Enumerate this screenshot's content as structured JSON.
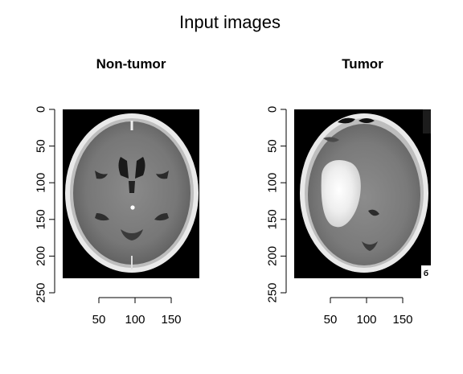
{
  "figure": {
    "title": "Input images"
  },
  "chart_data": [
    {
      "type": "image",
      "title": "Non-tumor",
      "image_subject": "axial head CT slice without tumor",
      "xlabel": "",
      "ylabel": "",
      "xticks": [
        50,
        100,
        150
      ],
      "yticks": [
        0,
        50,
        100,
        150,
        200,
        250
      ],
      "xlim": [
        0,
        190
      ],
      "ylim": [
        250,
        0
      ],
      "image_extent": {
        "x": [
          0,
          190
        ],
        "y": [
          0,
          225
        ]
      }
    },
    {
      "type": "image",
      "title": "Tumor",
      "image_subject": "axial head CT slice with large bright lesion in the left hemisphere",
      "corner_marker": "б",
      "xlabel": "",
      "ylabel": "",
      "xticks": [
        50,
        100,
        150
      ],
      "yticks": [
        0,
        50,
        100,
        150,
        200,
        250
      ],
      "xlim": [
        0,
        190
      ],
      "ylim": [
        250,
        0
      ],
      "image_extent": {
        "x": [
          0,
          190
        ],
        "y": [
          0,
          225
        ]
      }
    }
  ]
}
